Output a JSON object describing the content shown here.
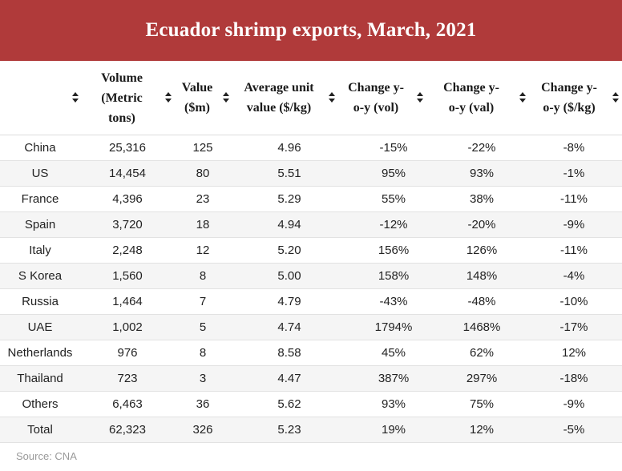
{
  "title": "Ecuador shrimp exports, March, 2021",
  "columns": [
    {
      "lines": [
        ""
      ],
      "sort_icon": "sort-arrows-icon"
    },
    {
      "lines": [
        "Volume",
        "(Metric",
        "tons)"
      ],
      "sort_icon": "sort-arrows-icon"
    },
    {
      "lines": [
        "Value",
        "($m)"
      ],
      "sort_icon": "sort-arrows-icon"
    },
    {
      "lines": [
        "Average unit",
        "value ($/kg)"
      ],
      "sort_icon": "sort-arrows-icon"
    },
    {
      "lines": [
        "Change y-",
        "o-y (vol)"
      ],
      "sort_icon": "sort-arrows-icon"
    },
    {
      "lines": [
        "Change y-",
        "o-y (val)"
      ],
      "sort_icon": "sort-arrows-icon"
    },
    {
      "lines": [
        "Change y-",
        "o-y ($/kg)"
      ],
      "sort_icon": "sort-arrows-icon"
    }
  ],
  "rows": [
    [
      "China",
      "25,316",
      "125",
      "4.96",
      "-15%",
      "-22%",
      "-8%"
    ],
    [
      "US",
      "14,454",
      "80",
      "5.51",
      "95%",
      "93%",
      "-1%"
    ],
    [
      "France",
      "4,396",
      "23",
      "5.29",
      "55%",
      "38%",
      "-11%"
    ],
    [
      "Spain",
      "3,720",
      "18",
      "4.94",
      "-12%",
      "-20%",
      "-9%"
    ],
    [
      "Italy",
      "2,248",
      "12",
      "5.20",
      "156%",
      "126%",
      "-11%"
    ],
    [
      "S Korea",
      "1,560",
      "8",
      "5.00",
      "158%",
      "148%",
      "-4%"
    ],
    [
      "Russia",
      "1,464",
      "7",
      "4.79",
      "-43%",
      "-48%",
      "-10%"
    ],
    [
      "UAE",
      "1,002",
      "5",
      "4.74",
      "1794%",
      "1468%",
      "-17%"
    ],
    [
      "Netherlands",
      "976",
      "8",
      "8.58",
      "45%",
      "62%",
      "12%"
    ],
    [
      "Thailand",
      "723",
      "3",
      "4.47",
      "387%",
      "297%",
      "-18%"
    ],
    [
      "Others",
      "6,463",
      "36",
      "5.62",
      "93%",
      "75%",
      "-9%"
    ],
    [
      "Total",
      "62,323",
      "326",
      "5.23",
      "19%",
      "12%",
      "-5%"
    ]
  ],
  "source": "Source: CNA",
  "colors": {
    "banner": "#b03a3a",
    "alt_row": "#f5f5f5"
  }
}
